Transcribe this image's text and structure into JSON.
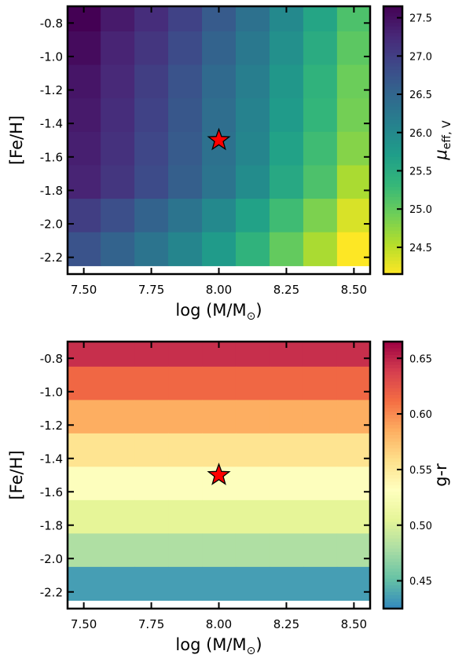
{
  "chart_data": [
    {
      "type": "heatmap",
      "panel": "top",
      "xlabel": "log (M/M",
      "xlabel_sub": "⊙",
      "xlabel_close": ")",
      "ylabel": "[Fe/H]",
      "colorbar_label": "μ",
      "colorbar_label_sub": "eff, V",
      "colormap": "viridis_r",
      "xlim": [
        7.44,
        8.56
      ],
      "ylim": [
        -2.3,
        -0.7
      ],
      "x_ticks": [
        "7.50",
        "7.75",
        "8.00",
        "8.25",
        "8.50"
      ],
      "x_tick_values": [
        7.5,
        7.75,
        8.0,
        8.25,
        8.5
      ],
      "y_ticks": [
        "-0.8",
        "-1.0",
        "-1.2",
        "-1.4",
        "-1.6",
        "-1.8",
        "-2.0",
        "-2.2"
      ],
      "y_tick_values": [
        -0.8,
        -1.0,
        -1.2,
        -1.4,
        -1.6,
        -1.8,
        -2.0,
        -2.2
      ],
      "x_centers": [
        7.5,
        7.625,
        7.75,
        7.875,
        8.0,
        8.125,
        8.25,
        8.375,
        8.5
      ],
      "y_centers": [
        -0.75,
        -0.95,
        -1.15,
        -1.35,
        -1.55,
        -1.75,
        -1.95,
        -2.15
      ],
      "z_values": [
        [
          27.65,
          27.4,
          27.2,
          26.95,
          26.65,
          26.35,
          26.0,
          25.6,
          25.15
        ],
        [
          27.55,
          27.3,
          27.1,
          26.85,
          26.55,
          26.25,
          25.9,
          25.5,
          25.05
        ],
        [
          27.45,
          27.25,
          27.0,
          26.75,
          26.45,
          26.15,
          25.8,
          25.4,
          24.95
        ],
        [
          27.4,
          27.2,
          26.95,
          26.7,
          26.4,
          26.1,
          25.75,
          25.35,
          24.9
        ],
        [
          27.35,
          27.15,
          26.9,
          26.65,
          26.35,
          26.05,
          25.65,
          25.25,
          24.8
        ],
        [
          27.3,
          27.1,
          26.85,
          26.6,
          26.3,
          25.95,
          25.55,
          25.15,
          24.6
        ],
        [
          27.0,
          26.8,
          26.55,
          26.3,
          26.0,
          25.65,
          25.25,
          24.85,
          24.35
        ],
        [
          26.75,
          26.55,
          26.3,
          26.05,
          25.75,
          25.4,
          25.0,
          24.6,
          24.15
        ]
      ],
      "clim": [
        24.15,
        27.65
      ],
      "colorbar_ticks": [
        "24.5",
        "25.0",
        "25.5",
        "26.0",
        "26.5",
        "27.0",
        "27.5"
      ],
      "colorbar_tick_values": [
        24.5,
        25.0,
        25.5,
        26.0,
        26.5,
        27.0,
        27.5
      ],
      "marker": {
        "shape": "star",
        "x": 8.0,
        "y": -1.5,
        "color": "#ff0000"
      }
    },
    {
      "type": "heatmap",
      "panel": "bottom",
      "xlabel": "log (M/M",
      "xlabel_sub": "⊙",
      "xlabel_close": ")",
      "ylabel": "[Fe/H]",
      "colorbar_label": "g-r",
      "colorbar_label_sub": "",
      "colormap": "Spectral_r",
      "xlim": [
        7.44,
        8.56
      ],
      "ylim": [
        -2.3,
        -0.7
      ],
      "x_ticks": [
        "7.50",
        "7.75",
        "8.00",
        "8.25",
        "8.50"
      ],
      "x_tick_values": [
        7.5,
        7.75,
        8.0,
        8.25,
        8.5
      ],
      "y_ticks": [
        "-0.8",
        "-1.0",
        "-1.2",
        "-1.4",
        "-1.6",
        "-1.8",
        "-2.0",
        "-2.2"
      ],
      "y_tick_values": [
        -0.8,
        -1.0,
        -1.2,
        -1.4,
        -1.6,
        -1.8,
        -2.0,
        -2.2
      ],
      "x_centers": [
        7.5,
        7.625,
        7.75,
        7.875,
        8.0,
        8.125,
        8.25,
        8.375,
        8.5
      ],
      "y_centers": [
        -0.75,
        -0.95,
        -1.15,
        -1.35,
        -1.55,
        -1.75,
        -1.95,
        -2.15
      ],
      "z_values": [
        [
          0.645,
          0.645,
          0.645,
          0.645,
          0.645,
          0.645,
          0.645,
          0.645,
          0.645
        ],
        [
          0.615,
          0.615,
          0.615,
          0.615,
          0.615,
          0.615,
          0.615,
          0.615,
          0.615
        ],
        [
          0.585,
          0.585,
          0.585,
          0.585,
          0.585,
          0.585,
          0.585,
          0.585,
          0.585
        ],
        [
          0.555,
          0.555,
          0.555,
          0.555,
          0.555,
          0.555,
          0.555,
          0.555,
          0.555
        ],
        [
          0.53,
          0.53,
          0.53,
          0.53,
          0.53,
          0.53,
          0.53,
          0.53,
          0.53
        ],
        [
          0.505,
          0.505,
          0.505,
          0.505,
          0.505,
          0.505,
          0.505,
          0.505,
          0.505
        ],
        [
          0.48,
          0.48,
          0.48,
          0.48,
          0.48,
          0.48,
          0.48,
          0.48,
          0.48
        ],
        [
          0.435,
          0.435,
          0.435,
          0.435,
          0.435,
          0.435,
          0.435,
          0.435,
          0.435
        ]
      ],
      "clim": [
        0.425,
        0.665
      ],
      "colorbar_ticks": [
        "0.45",
        "0.50",
        "0.55",
        "0.60",
        "0.65"
      ],
      "colorbar_tick_values": [
        0.45,
        0.5,
        0.55,
        0.6,
        0.65
      ],
      "marker": {
        "shape": "star",
        "x": 8.0,
        "y": -1.5,
        "color": "#ff0000"
      }
    }
  ]
}
